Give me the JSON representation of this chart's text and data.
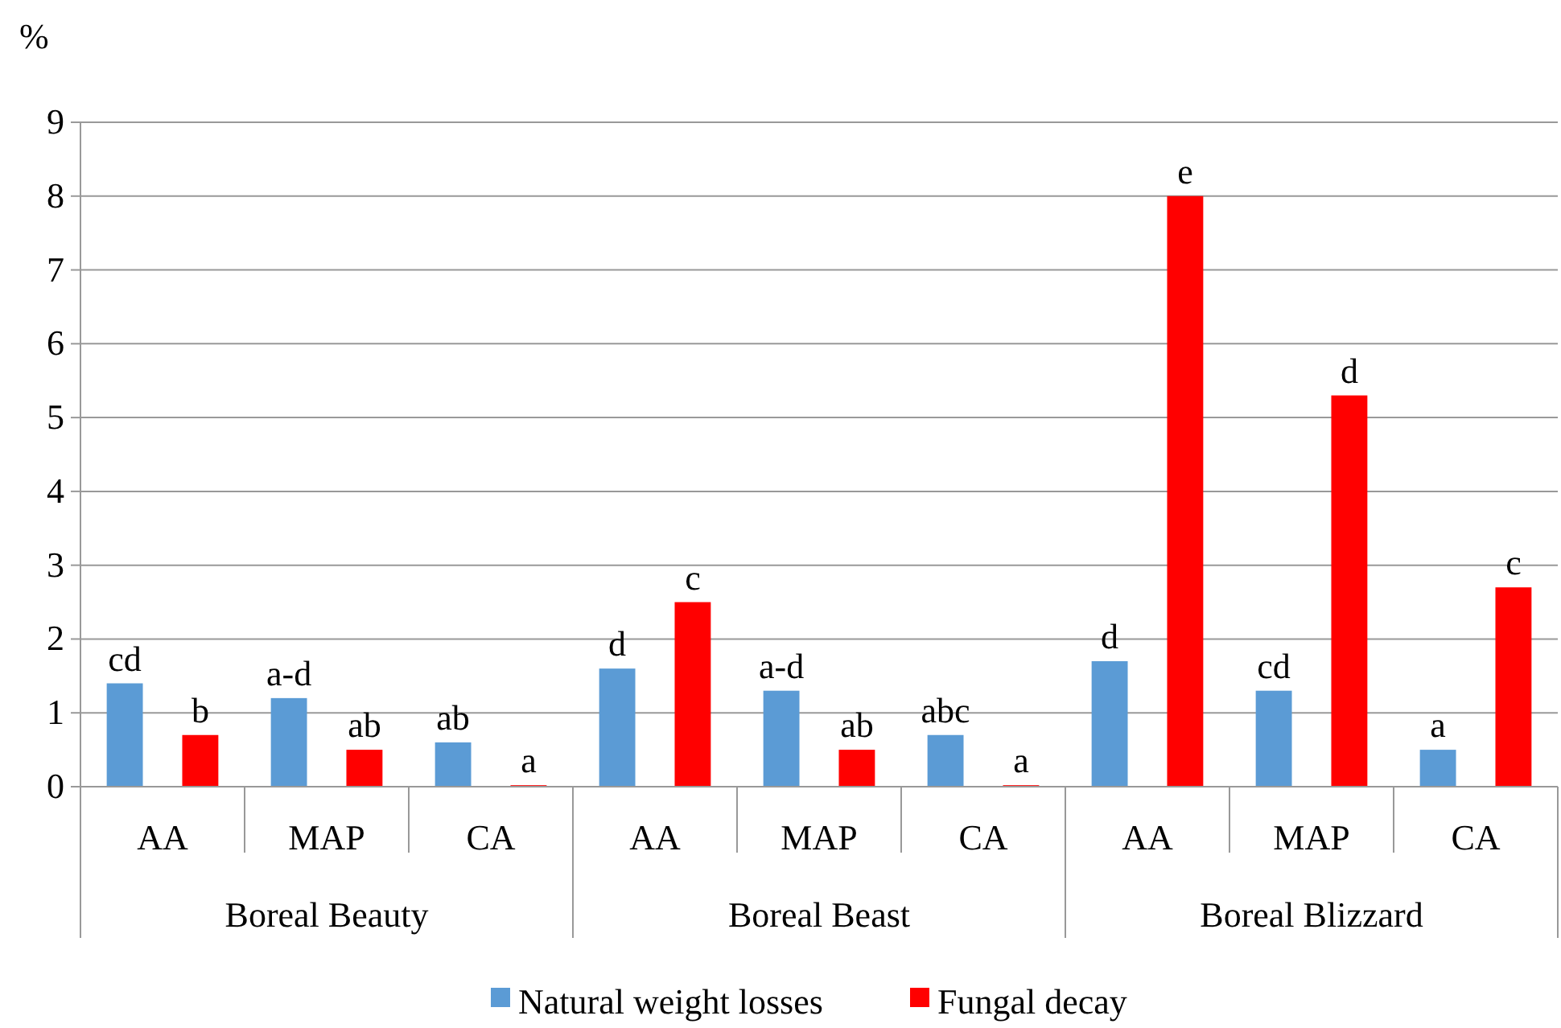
{
  "chart_data": {
    "type": "bar",
    "ylabel": "%",
    "categories": [
      "AA",
      "MAP",
      "CA",
      "AA",
      "MAP",
      "CA",
      "AA",
      "MAP",
      "CA"
    ],
    "series": [
      {
        "name": "Natural weight losses",
        "color": "#5b9bd5",
        "values": [
          1.4,
          1.2,
          0.6,
          1.6,
          1.3,
          0.7,
          1.7,
          1.3,
          0.5
        ],
        "value_labels": [
          "cd",
          "a-d",
          "ab",
          "d",
          "a-d",
          "abc",
          "d",
          "cd",
          "a"
        ]
      },
      {
        "name": "Fungal decay",
        "color": "#ff0000",
        "values": [
          0.7,
          0.5,
          0.02,
          2.5,
          0.5,
          0.02,
          8.0,
          5.3,
          2.7
        ],
        "value_labels": [
          "b",
          "ab",
          "a",
          "c",
          "ab",
          "a",
          "e",
          "d",
          "c"
        ]
      }
    ],
    "annotations": [
      "Boreal Beauty",
      "Boreal Beast",
      "Boreal Blizzard"
    ],
    "ylim": [
      0,
      9
    ],
    "yticks": [
      0,
      1,
      2,
      3,
      4,
      5,
      6,
      7,
      8,
      9
    ],
    "grid": "y",
    "legend": "bottom"
  }
}
